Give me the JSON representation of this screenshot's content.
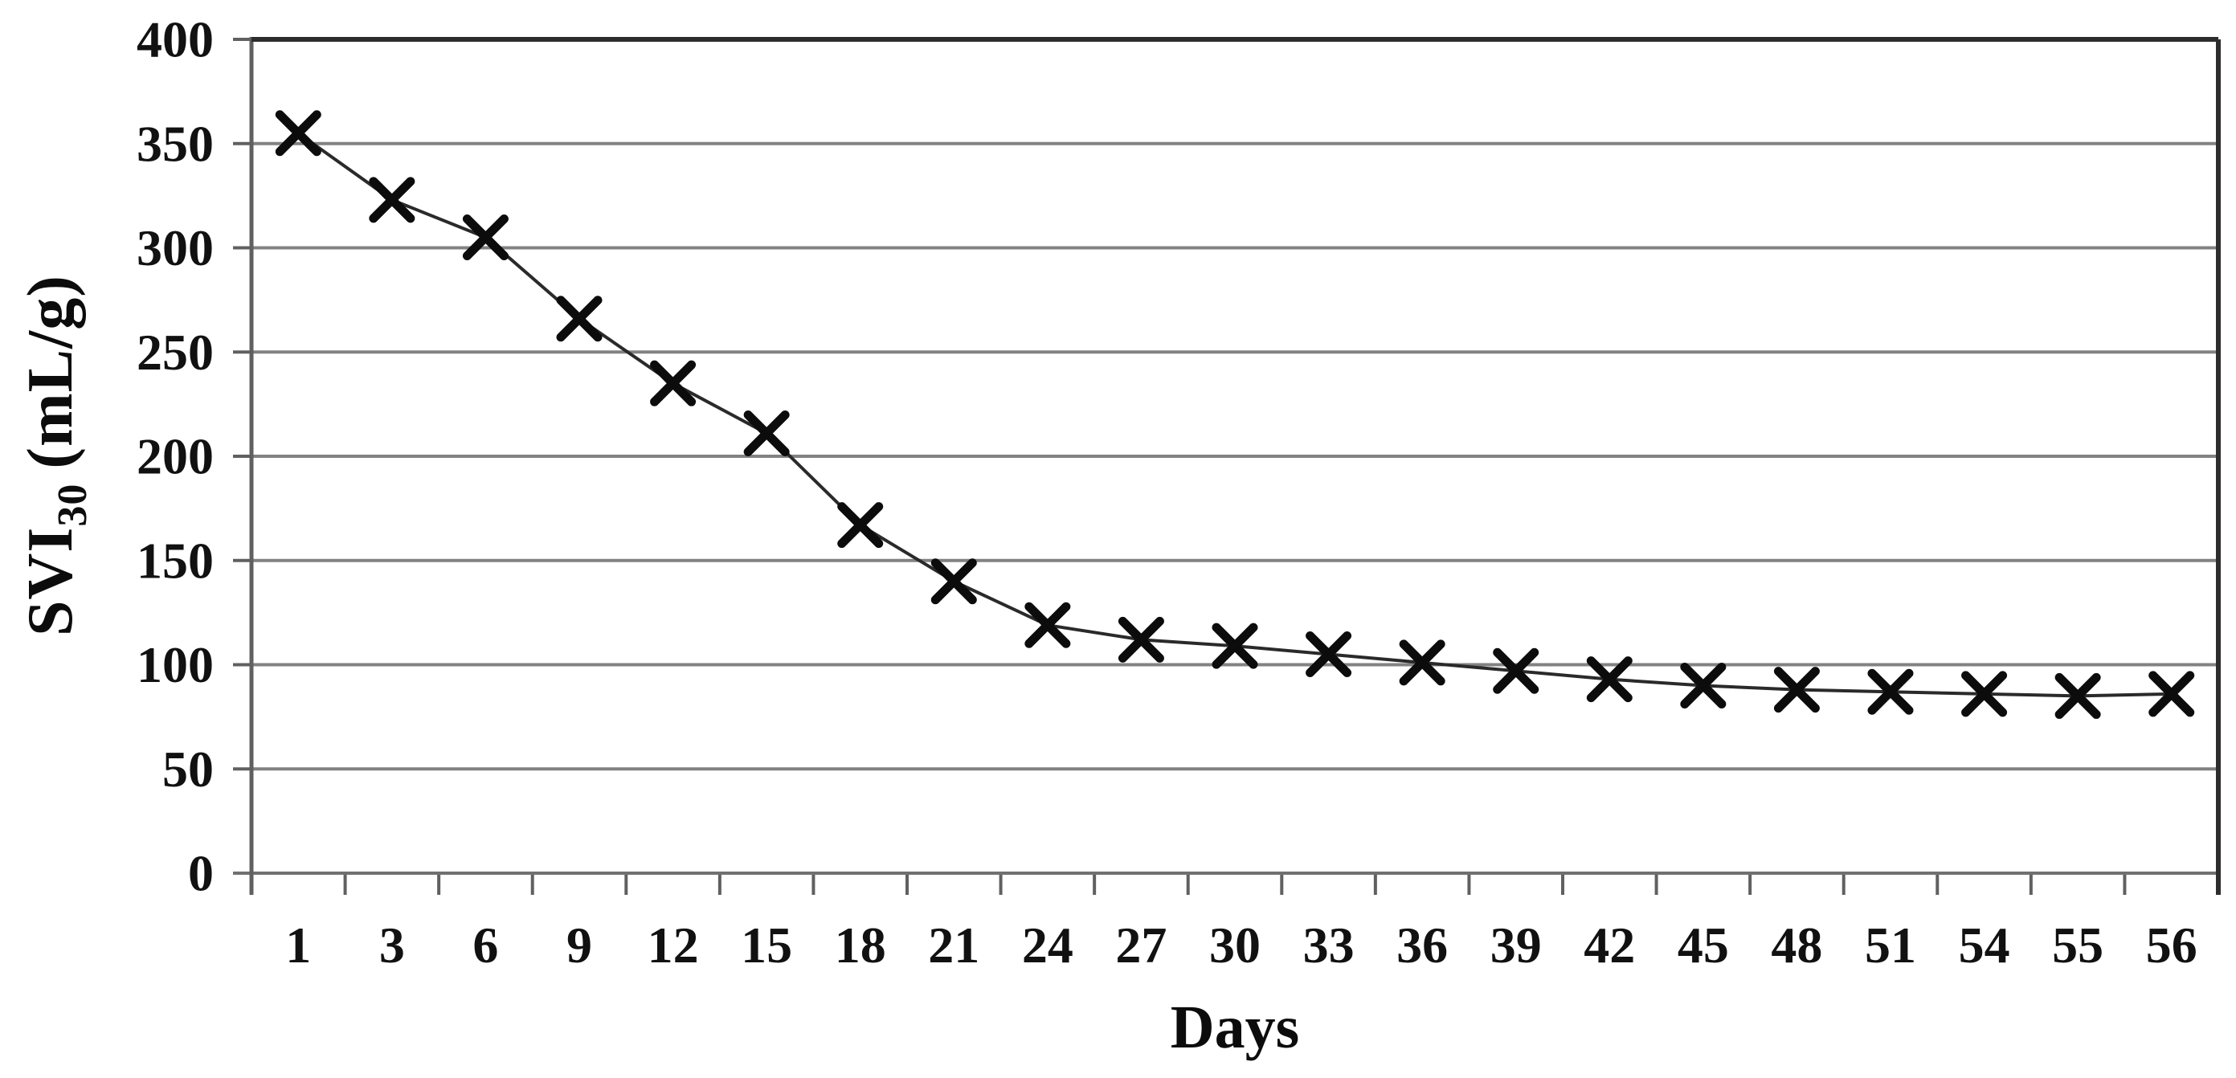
{
  "chart_data": {
    "type": "line",
    "title": "",
    "xlabel": "Days",
    "ylabel": {
      "main": "SVI",
      "sub": "30",
      "unit": "(mL/g)"
    },
    "categories": [
      "1",
      "3",
      "6",
      "9",
      "12",
      "15",
      "18",
      "21",
      "24",
      "27",
      "30",
      "33",
      "36",
      "39",
      "42",
      "45",
      "48",
      "51",
      "54",
      "55",
      "56"
    ],
    "series": [
      {
        "name": "SVI30",
        "marker": "x",
        "values": [
          355,
          323,
          305,
          266,
          235,
          211,
          167,
          140,
          119,
          112,
          109,
          105,
          101,
          97,
          93,
          90,
          88,
          87,
          86,
          85,
          86
        ]
      }
    ],
    "ylim": [
      0,
      400
    ],
    "ytick_step": 50,
    "yticks": [
      0,
      50,
      100,
      150,
      200,
      250,
      300,
      350,
      400
    ],
    "grid": "horizontal",
    "legend": "none",
    "colors": {
      "background": "#ffffff",
      "gridline": "#828282",
      "axis_line": "#606060",
      "plot_border": "#2d2d2d",
      "baseline": "#707070",
      "series_line": "#2a2a2a",
      "marker": "#0c0c0c",
      "text": "#111111"
    }
  }
}
